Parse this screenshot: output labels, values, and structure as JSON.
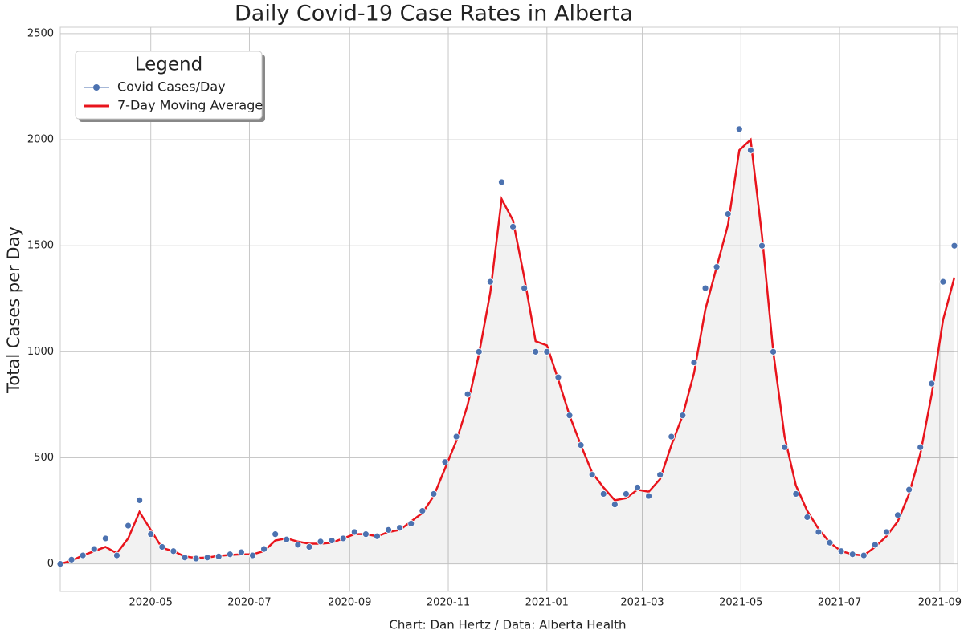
{
  "chart_data": {
    "type": "line",
    "title": "Daily Covid-19 Case Rates in Alberta",
    "y_label": "Total Cases per Day",
    "caption": "Chart: Dan Hertz / Data: Alberta Health",
    "legend_title": "Legend",
    "legend_position": "upper left",
    "grid": true,
    "x": [
      "2020-03-06",
      "2020-03-13",
      "2020-03-20",
      "2020-03-27",
      "2020-04-03",
      "2020-04-10",
      "2020-04-17",
      "2020-04-24",
      "2020-05-01",
      "2020-05-08",
      "2020-05-15",
      "2020-05-22",
      "2020-05-29",
      "2020-06-05",
      "2020-06-12",
      "2020-06-19",
      "2020-06-26",
      "2020-07-03",
      "2020-07-10",
      "2020-07-17",
      "2020-07-24",
      "2020-07-31",
      "2020-08-07",
      "2020-08-14",
      "2020-08-21",
      "2020-08-28",
      "2020-09-04",
      "2020-09-11",
      "2020-09-18",
      "2020-09-25",
      "2020-10-02",
      "2020-10-09",
      "2020-10-16",
      "2020-10-23",
      "2020-10-30",
      "2020-11-06",
      "2020-11-13",
      "2020-11-20",
      "2020-11-27",
      "2020-12-04",
      "2020-12-11",
      "2020-12-18",
      "2020-12-25",
      "2021-01-01",
      "2021-01-08",
      "2021-01-15",
      "2021-01-22",
      "2021-01-29",
      "2021-02-05",
      "2021-02-12",
      "2021-02-19",
      "2021-02-26",
      "2021-03-05",
      "2021-03-12",
      "2021-03-19",
      "2021-03-26",
      "2021-04-02",
      "2021-04-09",
      "2021-04-16",
      "2021-04-23",
      "2021-04-30",
      "2021-05-07",
      "2021-05-14",
      "2021-05-21",
      "2021-05-28",
      "2021-06-04",
      "2021-06-11",
      "2021-06-18",
      "2021-06-25",
      "2021-07-02",
      "2021-07-09",
      "2021-07-16",
      "2021-07-23",
      "2021-07-30",
      "2021-08-06",
      "2021-08-13",
      "2021-08-20",
      "2021-08-27",
      "2021-09-03",
      "2021-09-10"
    ],
    "series": [
      {
        "name": "Covid Cases/Day",
        "kind": "scatter",
        "color": "#4c72b0",
        "values": [
          0,
          20,
          40,
          70,
          120,
          40,
          180,
          300,
          140,
          80,
          60,
          30,
          25,
          30,
          35,
          45,
          55,
          40,
          70,
          140,
          115,
          90,
          80,
          105,
          110,
          120,
          150,
          140,
          130,
          160,
          170,
          190,
          250,
          330,
          480,
          600,
          800,
          1000,
          1330,
          1800,
          1590,
          1300,
          1000,
          1000,
          880,
          700,
          560,
          420,
          330,
          280,
          330,
          360,
          320,
          420,
          600,
          700,
          950,
          1300,
          1400,
          1650,
          2050,
          1950,
          1500,
          1000,
          550,
          330,
          220,
          150,
          100,
          60,
          45,
          40,
          90,
          150,
          230,
          350,
          550,
          850,
          1330,
          1500
        ]
      },
      {
        "name": "7-Day Moving Average",
        "kind": "line",
        "color": "#e8141c",
        "values": [
          0,
          15,
          40,
          60,
          80,
          50,
          120,
          245,
          160,
          75,
          60,
          35,
          28,
          30,
          38,
          42,
          45,
          45,
          60,
          110,
          120,
          105,
          95,
          95,
          100,
          120,
          140,
          140,
          130,
          150,
          160,
          200,
          240,
          320,
          450,
          580,
          750,
          990,
          1280,
          1720,
          1620,
          1350,
          1050,
          1030,
          870,
          700,
          560,
          430,
          360,
          300,
          310,
          350,
          340,
          400,
          560,
          700,
          900,
          1200,
          1400,
          1600,
          1950,
          2000,
          1550,
          1000,
          600,
          370,
          250,
          165,
          100,
          60,
          45,
          40,
          80,
          130,
          200,
          330,
          520,
          800,
          1150,
          1350
        ]
      }
    ],
    "xlim": [
      "2020-03-06",
      "2021-09-12"
    ],
    "xticks": [
      "2020-05",
      "2020-07",
      "2020-09",
      "2020-11",
      "2021-01",
      "2021-03",
      "2021-05",
      "2021-07",
      "2021-09"
    ],
    "ylim": [
      -130,
      2530
    ],
    "yticks": [
      0,
      500,
      1000,
      1500,
      2000,
      2500
    ]
  }
}
